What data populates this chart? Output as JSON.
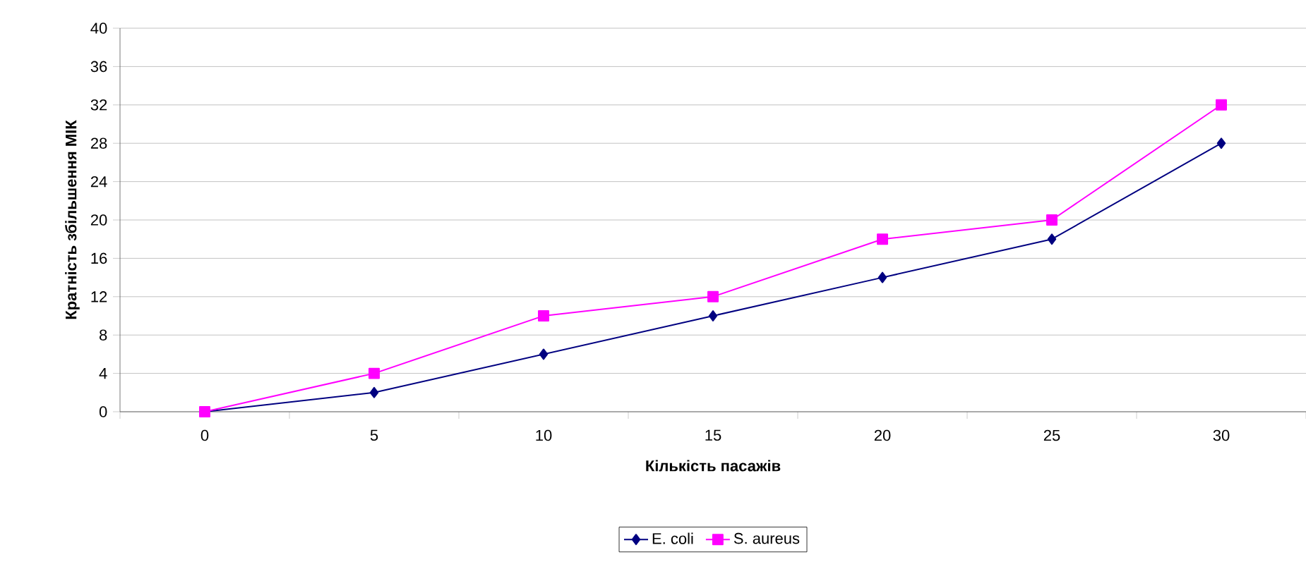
{
  "chart_data": {
    "type": "line",
    "xlabel": "Кількість пасажів",
    "ylabel": "Кратність збільшення МІК",
    "categories": [
      "0",
      "5",
      "10",
      "15",
      "20",
      "25",
      "30"
    ],
    "series": [
      {
        "name": "E. coli",
        "color": "#000080",
        "marker": "diamond",
        "values": [
          0,
          2,
          6,
          10,
          14,
          18,
          28
        ]
      },
      {
        "name": "S. aureus",
        "color": "#ff00ff",
        "marker": "square",
        "values": [
          0,
          4,
          10,
          12,
          18,
          20,
          32
        ]
      }
    ],
    "ylim": [
      0,
      40
    ],
    "yticks": [
      0,
      4,
      8,
      12,
      16,
      20,
      24,
      28,
      32,
      36,
      40
    ],
    "grid": "y",
    "legend": "bottom",
    "line_style": "solid"
  }
}
